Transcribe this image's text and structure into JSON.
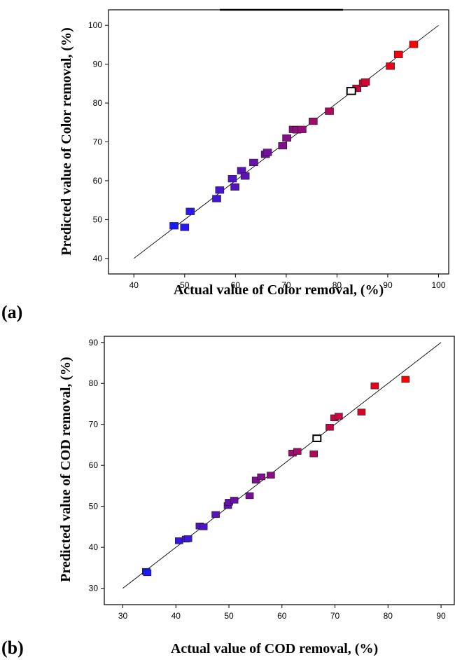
{
  "chart_data": [
    {
      "type": "scatter",
      "panel_label": "(a)",
      "xlabel": "Actual value of Color removal, (%)",
      "ylabel": "Predicted value of Color removal, (%)",
      "xlim": [
        35,
        102
      ],
      "ylim": [
        36,
        104
      ],
      "xticks": [
        40,
        50,
        60,
        70,
        80,
        90,
        100
      ],
      "yticks": [
        40,
        50,
        60,
        70,
        80,
        90,
        100
      ],
      "reference_line": {
        "x": [
          40,
          100
        ],
        "y": [
          40,
          100
        ]
      },
      "color_scale": {
        "low": "#1a1aff",
        "high": "#ff0000",
        "min": 48,
        "max": 95
      },
      "highlighted_point": {
        "x": 82.8,
        "y": 83.1
      },
      "points": [
        {
          "x": 47.9,
          "y": 48.4
        },
        {
          "x": 50.0,
          "y": 48.0
        },
        {
          "x": 51.1,
          "y": 52.1
        },
        {
          "x": 56.3,
          "y": 55.4
        },
        {
          "x": 56.9,
          "y": 57.6
        },
        {
          "x": 59.4,
          "y": 60.5
        },
        {
          "x": 59.9,
          "y": 58.4
        },
        {
          "x": 61.2,
          "y": 62.6
        },
        {
          "x": 61.9,
          "y": 61.2
        },
        {
          "x": 63.6,
          "y": 64.7
        },
        {
          "x": 65.9,
          "y": 66.8
        },
        {
          "x": 66.3,
          "y": 67.3
        },
        {
          "x": 69.3,
          "y": 69.0
        },
        {
          "x": 70.1,
          "y": 71.0
        },
        {
          "x": 71.4,
          "y": 73.2
        },
        {
          "x": 72.1,
          "y": 73.1
        },
        {
          "x": 73.1,
          "y": 73.2
        },
        {
          "x": 75.3,
          "y": 75.3
        },
        {
          "x": 78.5,
          "y": 77.9
        },
        {
          "x": 83.9,
          "y": 83.8
        },
        {
          "x": 85.2,
          "y": 85.1
        },
        {
          "x": 85.6,
          "y": 85.4
        },
        {
          "x": 90.5,
          "y": 89.5
        },
        {
          "x": 92.1,
          "y": 92.5
        },
        {
          "x": 95.1,
          "y": 95.1
        }
      ]
    },
    {
      "type": "scatter",
      "panel_label": "(b)",
      "xlabel": "Actual value of COD removal, (%)",
      "ylabel": "Predicted value of COD removal, (%)",
      "xlim": [
        26.5,
        92.5
      ],
      "ylim": [
        26,
        91.5
      ],
      "xticks": [
        30,
        40,
        50,
        60,
        70,
        80,
        90
      ],
      "yticks": [
        30,
        40,
        50,
        60,
        70,
        80,
        90
      ],
      "reference_line": {
        "x": [
          30,
          90
        ],
        "y": [
          30,
          90
        ]
      },
      "color_scale": {
        "low": "#1a1aff",
        "high": "#ff0000",
        "min": 34,
        "max": 83
      },
      "highlighted_point": {
        "x": 66.6,
        "y": 66.6
      },
      "points": [
        {
          "x": 34.4,
          "y": 34.1
        },
        {
          "x": 34.6,
          "y": 33.8
        },
        {
          "x": 40.6,
          "y": 41.6
        },
        {
          "x": 41.9,
          "y": 42.0
        },
        {
          "x": 42.3,
          "y": 42.1
        },
        {
          "x": 44.5,
          "y": 45.2
        },
        {
          "x": 45.2,
          "y": 45.0
        },
        {
          "x": 47.5,
          "y": 48.0
        },
        {
          "x": 49.8,
          "y": 50.2
        },
        {
          "x": 50.0,
          "y": 51.0
        },
        {
          "x": 51.0,
          "y": 51.5
        },
        {
          "x": 53.9,
          "y": 52.6
        },
        {
          "x": 55.1,
          "y": 56.4
        },
        {
          "x": 56.1,
          "y": 57.2
        },
        {
          "x": 57.9,
          "y": 57.6
        },
        {
          "x": 62.0,
          "y": 63.0
        },
        {
          "x": 62.9,
          "y": 63.4
        },
        {
          "x": 66.0,
          "y": 62.8
        },
        {
          "x": 69.0,
          "y": 69.3
        },
        {
          "x": 69.9,
          "y": 71.6
        },
        {
          "x": 70.7,
          "y": 72.0
        },
        {
          "x": 75.0,
          "y": 73.0
        },
        {
          "x": 77.5,
          "y": 79.4
        },
        {
          "x": 83.3,
          "y": 81.0
        }
      ]
    }
  ]
}
